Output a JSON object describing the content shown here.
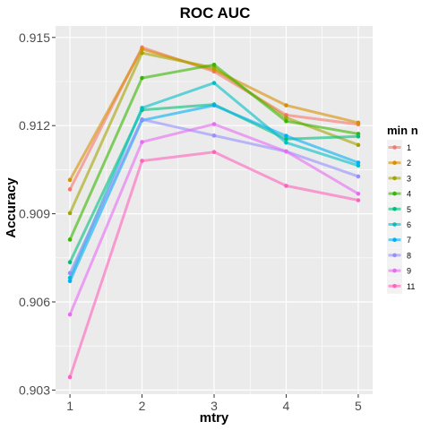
{
  "chart_data": {
    "type": "line",
    "title": "ROC AUC",
    "xlabel": "mtry",
    "ylabel": "Accuracy",
    "x": [
      1,
      2,
      3,
      4,
      5
    ],
    "xlim": [
      0.8,
      5.2
    ],
    "ylim": [
      0.90286,
      0.91539
    ],
    "x_ticks": [
      "1",
      "2",
      "3",
      "4",
      "5"
    ],
    "y_ticks": [
      0.903,
      0.906,
      0.909,
      0.912,
      0.915
    ],
    "y_tick_labels": [
      "0.903",
      "0.906",
      "0.909",
      "0.912",
      "0.915"
    ],
    "grid": true,
    "legend_position": "right",
    "legend_title": "min n",
    "series": [
      {
        "name": "1",
        "color": "#F8766D",
        "values": [
          0.90983,
          0.91466,
          0.91384,
          0.91236,
          0.91204
        ]
      },
      {
        "name": "2",
        "color": "#D89000",
        "values": [
          0.91015,
          0.9146,
          0.9139,
          0.91269,
          0.9121
        ]
      },
      {
        "name": "3",
        "color": "#A3A500",
        "values": [
          0.90902,
          0.91447,
          0.91397,
          0.91227,
          0.91134
        ]
      },
      {
        "name": "4",
        "color": "#39B600",
        "values": [
          0.90812,
          0.91362,
          0.91407,
          0.91215,
          0.91172
        ]
      },
      {
        "name": "5",
        "color": "#00BF7D",
        "values": [
          0.90735,
          0.91253,
          0.91272,
          0.91154,
          0.91163
        ]
      },
      {
        "name": "6",
        "color": "#00BFC4",
        "values": [
          0.90682,
          0.9126,
          0.91345,
          0.91142,
          0.91064
        ]
      },
      {
        "name": "7",
        "color": "#00B0F6",
        "values": [
          0.90671,
          0.91218,
          0.91269,
          0.91165,
          0.91074
        ]
      },
      {
        "name": "8",
        "color": "#9590FF",
        "values": [
          0.90698,
          0.91221,
          0.91166,
          0.91112,
          0.91027
        ]
      },
      {
        "name": "9",
        "color": "#E76BF3",
        "values": [
          0.90557,
          0.91144,
          0.91205,
          0.91112,
          0.90968
        ]
      },
      {
        "name": "11",
        "color": "#FF62BC",
        "values": [
          0.90344,
          0.9108,
          0.9111,
          0.90995,
          0.90946
        ]
      }
    ]
  }
}
